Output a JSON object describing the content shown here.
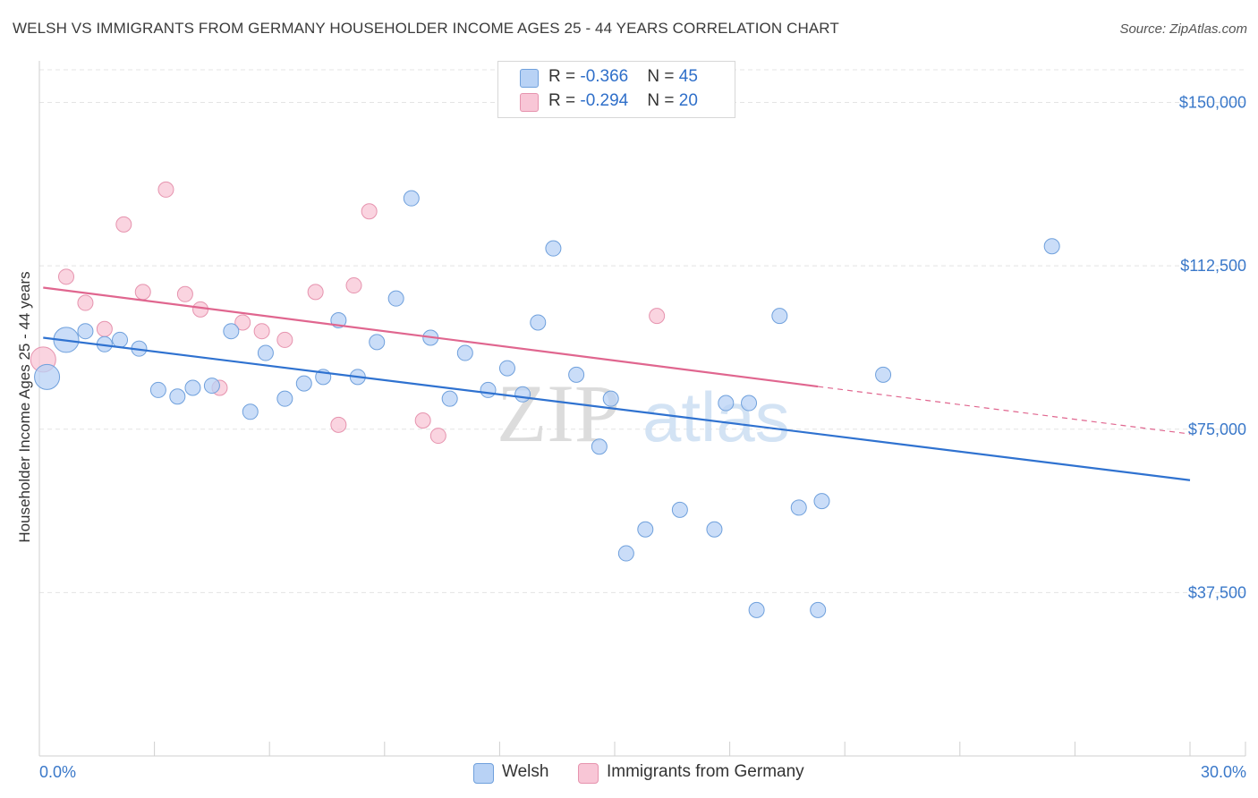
{
  "title": "WELSH VS IMMIGRANTS FROM GERMANY HOUSEHOLDER INCOME AGES 25 - 44 YEARS CORRELATION CHART",
  "source": "Source: ZipAtlas.com",
  "watermark": {
    "zip": "ZIP",
    "atlas": "atlas"
  },
  "legend": {
    "rows": [
      {
        "r_label": "R = ",
        "r_value": "-0.366",
        "n_label": "N = ",
        "n_value": "45"
      },
      {
        "r_label": "R = ",
        "r_value": "-0.294",
        "n_label": "N = ",
        "n_value": "20"
      }
    ]
  },
  "colors": {
    "welsh_fill": "#b8d2f5",
    "welsh_stroke": "#6fa0dc",
    "welsh_line": "#2f72d0",
    "germany_fill": "#f8c6d6",
    "germany_stroke": "#e693ae",
    "germany_line": "#e0668f",
    "axis_text": "#3a78c9",
    "grid": "#e4e4e4"
  },
  "chart_data": {
    "type": "scatter",
    "title": "WELSH VS IMMIGRANTS FROM GERMANY HOUSEHOLDER INCOME AGES 25 - 44 YEARS CORRELATION CHART",
    "xlabel": "",
    "ylabel": "Householder Income Ages 25 - 44 years",
    "xlim": [
      0,
      30
    ],
    "ylim": [
      0,
      157500
    ],
    "x_tick_labels": [
      "0.0%",
      "30.0%"
    ],
    "y_ticks": [
      37500,
      75000,
      112500,
      150000
    ],
    "y_tick_labels": [
      "$37,500",
      "$75,000",
      "$112,500",
      "$150,000"
    ],
    "grid": "horizontal dashed",
    "legend_position": "bottom",
    "series": [
      {
        "name": "Welsh",
        "r": -0.366,
        "n": 45,
        "trend": {
          "x": [
            0.1,
            30.0
          ],
          "y": [
            96000,
            63300
          ]
        },
        "points": [
          {
            "x": 0.2,
            "y": 87000,
            "big": 1
          },
          {
            "x": 0.7,
            "y": 95500,
            "big": 1
          },
          {
            "x": 1.2,
            "y": 97500
          },
          {
            "x": 1.7,
            "y": 94500
          },
          {
            "x": 2.1,
            "y": 95500
          },
          {
            "x": 2.6,
            "y": 93500
          },
          {
            "x": 3.1,
            "y": 84000
          },
          {
            "x": 3.6,
            "y": 82500
          },
          {
            "x": 4.0,
            "y": 84500
          },
          {
            "x": 4.5,
            "y": 85000
          },
          {
            "x": 5.0,
            "y": 97500
          },
          {
            "x": 5.5,
            "y": 79000
          },
          {
            "x": 5.9,
            "y": 92500
          },
          {
            "x": 6.4,
            "y": 82000
          },
          {
            "x": 6.9,
            "y": 85500
          },
          {
            "x": 7.4,
            "y": 87000
          },
          {
            "x": 7.8,
            "y": 100000
          },
          {
            "x": 8.3,
            "y": 87000
          },
          {
            "x": 8.8,
            "y": 95000
          },
          {
            "x": 9.3,
            "y": 105000
          },
          {
            "x": 9.7,
            "y": 128000
          },
          {
            "x": 10.2,
            "y": 96000
          },
          {
            "x": 10.7,
            "y": 82000
          },
          {
            "x": 11.1,
            "y": 92500
          },
          {
            "x": 11.7,
            "y": 84000
          },
          {
            "x": 12.2,
            "y": 89000
          },
          {
            "x": 12.6,
            "y": 83000
          },
          {
            "x": 13.0,
            "y": 99500
          },
          {
            "x": 13.4,
            "y": 116500
          },
          {
            "x": 14.0,
            "y": 87500
          },
          {
            "x": 14.6,
            "y": 71000
          },
          {
            "x": 14.9,
            "y": 82000
          },
          {
            "x": 15.3,
            "y": 46500
          },
          {
            "x": 15.8,
            "y": 52000
          },
          {
            "x": 16.7,
            "y": 56500
          },
          {
            "x": 17.6,
            "y": 52000
          },
          {
            "x": 17.9,
            "y": 81000
          },
          {
            "x": 18.5,
            "y": 81000
          },
          {
            "x": 18.7,
            "y": 33500
          },
          {
            "x": 19.3,
            "y": 101000
          },
          {
            "x": 19.8,
            "y": 57000
          },
          {
            "x": 20.3,
            "y": 33500
          },
          {
            "x": 20.4,
            "y": 58500
          },
          {
            "x": 22.0,
            "y": 87500
          },
          {
            "x": 26.4,
            "y": 117000
          }
        ]
      },
      {
        "name": "Immigrants from Germany",
        "r": -0.294,
        "n": 20,
        "trend": {
          "x": [
            0.1,
            20.3
          ],
          "y": [
            107500,
            84800
          ]
        },
        "trend_dashed": {
          "x": [
            20.3,
            30.0
          ],
          "y": [
            84800,
            73900
          ]
        },
        "points": [
          {
            "x": 0.1,
            "y": 91000,
            "big": 1
          },
          {
            "x": 0.7,
            "y": 110000
          },
          {
            "x": 1.2,
            "y": 104000
          },
          {
            "x": 1.7,
            "y": 98000
          },
          {
            "x": 2.2,
            "y": 122000
          },
          {
            "x": 2.7,
            "y": 106500
          },
          {
            "x": 3.3,
            "y": 130000
          },
          {
            "x": 3.8,
            "y": 106000
          },
          {
            "x": 4.2,
            "y": 102500
          },
          {
            "x": 4.7,
            "y": 84500
          },
          {
            "x": 5.3,
            "y": 99500
          },
          {
            "x": 5.8,
            "y": 97500
          },
          {
            "x": 6.4,
            "y": 95500
          },
          {
            "x": 7.2,
            "y": 106500
          },
          {
            "x": 7.8,
            "y": 76000
          },
          {
            "x": 8.2,
            "y": 108000
          },
          {
            "x": 8.6,
            "y": 125000
          },
          {
            "x": 10.0,
            "y": 77000
          },
          {
            "x": 10.4,
            "y": 73500
          },
          {
            "x": 16.1,
            "y": 101000
          }
        ]
      }
    ]
  }
}
